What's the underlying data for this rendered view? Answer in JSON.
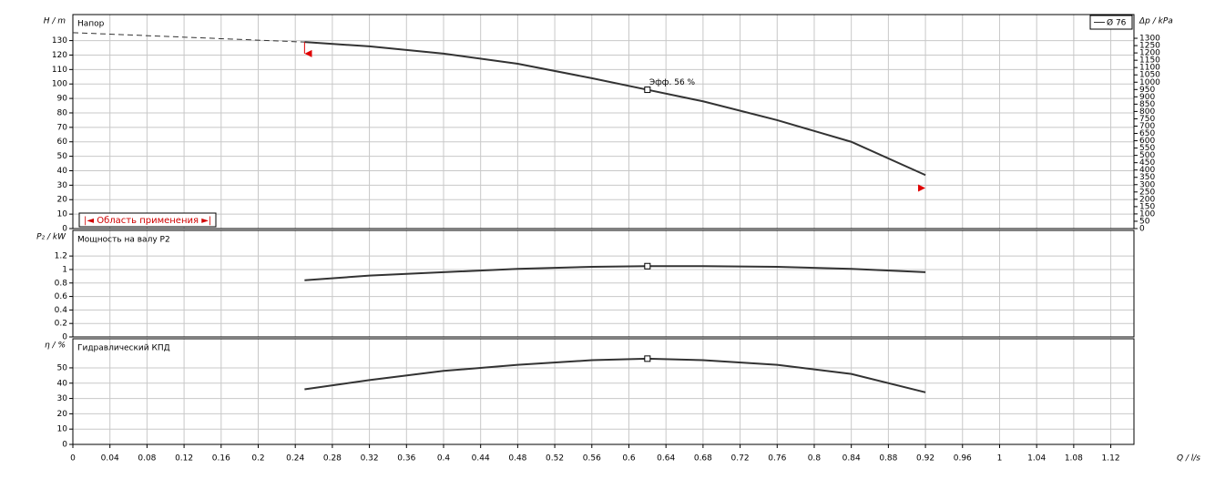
{
  "chart_data": [
    {
      "type": "line",
      "y_label": "H / m",
      "y2_label": "Δp / kPa",
      "subtitle": "Напор",
      "annotation": "Эфф. 56 %",
      "range_label": "|◄ Область применения ►|",
      "x": [
        0,
        0.25,
        0.32,
        0.4,
        0.48,
        0.56,
        0.62,
        0.68,
        0.76,
        0.84,
        0.92
      ],
      "xlim": [
        0,
        1.145
      ],
      "ylim": [
        0,
        148
      ],
      "yticks": [
        0,
        10,
        20,
        30,
        40,
        50,
        60,
        70,
        80,
        90,
        100,
        110,
        120,
        130
      ],
      "y2lim": [
        0,
        1462
      ],
      "y2ticks": [
        0,
        50,
        100,
        150,
        200,
        250,
        300,
        350,
        400,
        450,
        500,
        550,
        600,
        650,
        700,
        750,
        800,
        850,
        900,
        950,
        1000,
        1050,
        1100,
        1150,
        1200,
        1250,
        1300
      ],
      "grid": true,
      "highlight_x": 0.62,
      "range_markers": [
        {
          "x": 0.255,
          "y": 121
        },
        {
          "x": 0.915,
          "y": 28
        }
      ],
      "series": [
        {
          "style": "dashed",
          "color": "#333333",
          "values": [
            135.5,
            129,
            null,
            null,
            null,
            null,
            null,
            null,
            null,
            null,
            null
          ]
        },
        {
          "name": "Ø 76",
          "color": "#333333",
          "values": [
            null,
            129,
            126,
            121,
            114,
            104,
            96,
            88,
            75,
            60,
            37
          ]
        }
      ]
    },
    {
      "type": "line",
      "y_label": "P₂ / kW",
      "subtitle": "Мощность на валу P2",
      "x": [
        0.25,
        0.32,
        0.4,
        0.48,
        0.56,
        0.62,
        0.68,
        0.76,
        0.84,
        0.92
      ],
      "xlim": [
        0,
        1.145
      ],
      "ylim": [
        0,
        1.58
      ],
      "yticks": [
        0,
        0.2,
        0.4,
        0.6,
        0.8,
        1,
        1.2
      ],
      "grid": true,
      "highlight_x": 0.62,
      "series": [
        {
          "color": "#333333",
          "values": [
            0.84,
            0.91,
            0.96,
            1.01,
            1.04,
            1.05,
            1.05,
            1.04,
            1.01,
            0.96
          ]
        }
      ]
    },
    {
      "type": "line",
      "y_label": "η / %",
      "subtitle": "Гидравлический КПД",
      "x_label": "Q / l/s",
      "x": [
        0.25,
        0.32,
        0.4,
        0.48,
        0.56,
        0.62,
        0.68,
        0.76,
        0.84,
        0.92
      ],
      "xlim": [
        0,
        1.145
      ],
      "xticks": [
        0,
        0.04,
        0.08,
        0.12,
        0.16,
        0.2,
        0.24,
        0.28,
        0.32,
        0.36,
        0.4,
        0.44,
        0.48,
        0.52,
        0.56,
        0.6,
        0.64,
        0.68,
        0.72,
        0.76,
        0.8,
        0.84,
        0.88,
        0.92,
        0.96,
        1,
        1.04,
        1.08,
        1.12
      ],
      "ylim": [
        0,
        69
      ],
      "yticks": [
        0,
        10,
        20,
        30,
        40,
        50
      ],
      "grid": true,
      "highlight_x": 0.62,
      "series": [
        {
          "color": "#333333",
          "values": [
            36,
            42,
            48,
            52,
            55,
            56,
            55,
            52,
            46,
            34
          ]
        }
      ]
    }
  ]
}
